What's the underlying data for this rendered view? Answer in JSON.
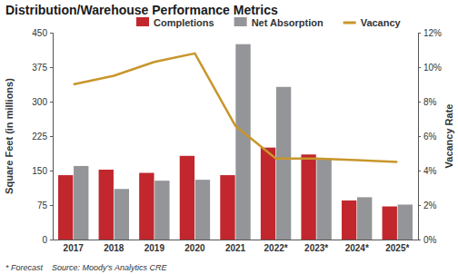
{
  "chart_data": {
    "type": "bar",
    "title": "Distribution/Warehouse Performance Metrics",
    "y_label": "Square Feet (in millions)",
    "y2_label": "Vacancy Rate",
    "footnote": "* Forecast",
    "source": "Source: Moody's Analytics CRE",
    "categories": [
      "2017",
      "2018",
      "2019",
      "2020",
      "2021",
      "2022*",
      "2023*",
      "2024*",
      "2025*"
    ],
    "series": [
      {
        "name": "Completions",
        "type": "bar",
        "color": "#c1272d",
        "values": [
          140,
          152,
          145,
          182,
          140,
          200,
          185,
          85,
          72
        ]
      },
      {
        "name": "Net Absorption",
        "type": "bar",
        "color": "#939598",
        "values": [
          160,
          110,
          128,
          130,
          425,
          332,
          175,
          92,
          76
        ]
      },
      {
        "name": "Vacancy",
        "type": "line",
        "axis": "y2",
        "color": "#c8962a",
        "values": [
          9.0,
          9.5,
          10.3,
          10.8,
          6.6,
          4.7,
          4.7,
          4.6,
          4.5
        ]
      }
    ],
    "ylim": [
      0,
      450
    ],
    "yticks": [
      0,
      75,
      150,
      225,
      300,
      375,
      450
    ],
    "y2lim": [
      0,
      12
    ],
    "y2ticks": [
      {
        "value": 0,
        "label": "0%"
      },
      {
        "value": 2,
        "label": "2%"
      },
      {
        "value": 4,
        "label": "4%"
      },
      {
        "value": 6,
        "label": "6%"
      },
      {
        "value": 8,
        "label": "8%"
      },
      {
        "value": 10,
        "label": "10%"
      },
      {
        "value": 12,
        "label": "12%"
      }
    ],
    "grid": false,
    "legend": "top"
  }
}
